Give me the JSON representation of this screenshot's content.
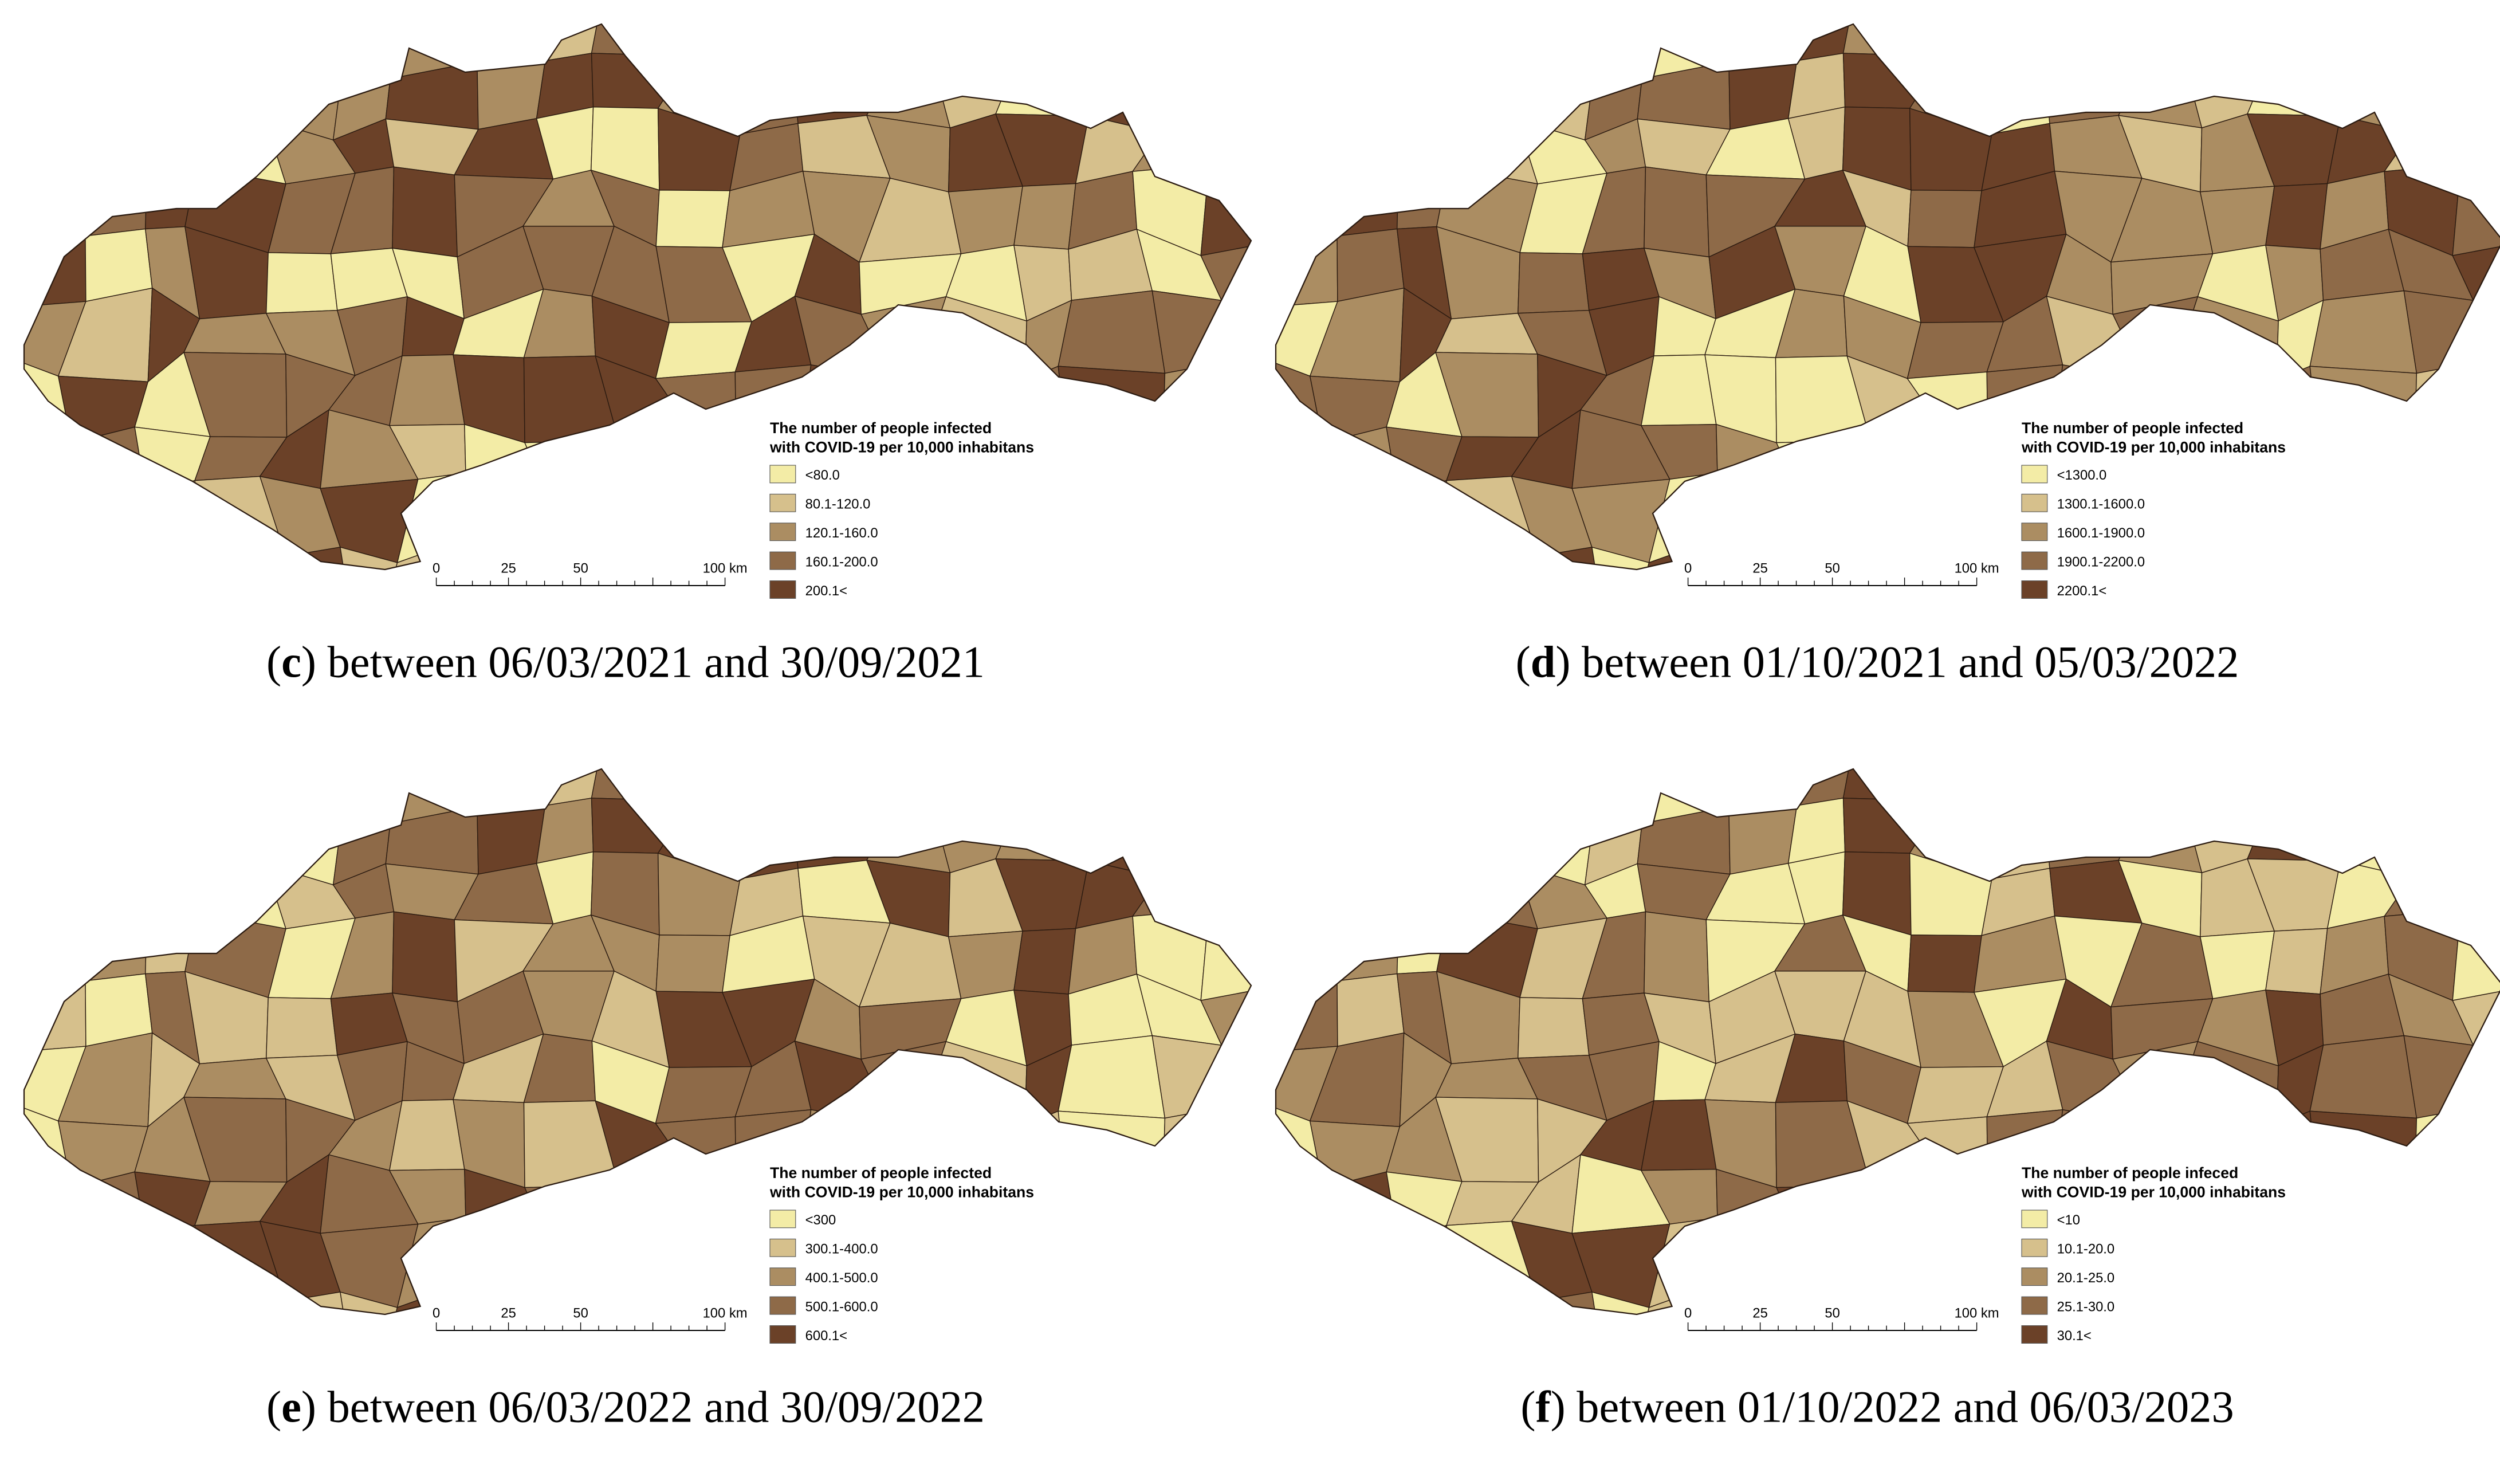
{
  "panels": [
    {
      "caption": [
        "(",
        "c",
        ") between 06/03/2021 and 30/09/2021"
      ],
      "legend_title": [
        "The number of people infected",
        " with COVID-19 per 10,000 inhabitans"
      ],
      "classes": [
        {
          "label": "<80.0",
          "color": "#f3eca6"
        },
        {
          "label": "80.1-120.0",
          "color": "#d6c08c"
        },
        {
          "label": "120.1-160.0",
          "color": "#ab8d62"
        },
        {
          "label": "160.1-200.0",
          "color": "#8e6a48"
        },
        {
          "label": "200.1<",
          "color": "#6b4128"
        }
      ],
      "scale": [
        "0",
        "25",
        "50",
        "100 km"
      ]
    },
    {
      "caption": [
        "(",
        "d",
        ") between 01/10/2021 and 05/03/2022"
      ],
      "legend_title": [
        "The number of people infected",
        "with COVID-19 per 10,000 inhabitans"
      ],
      "classes": [
        {
          "label": "<1300.0",
          "color": "#f3eca6"
        },
        {
          "label": "1300.1-1600.0",
          "color": "#d6c08c"
        },
        {
          "label": "1600.1-1900.0",
          "color": "#ab8d62"
        },
        {
          "label": "1900.1-2200.0",
          "color": "#8e6a48"
        },
        {
          "label": "2200.1<",
          "color": "#6b4128"
        }
      ],
      "scale": [
        "0",
        "25",
        "50",
        "100 km"
      ]
    },
    {
      "caption": [
        "(",
        "e",
        ") between 06/03/2022 and 30/09/2022"
      ],
      "legend_title": [
        "The number of people infected",
        "with COVID-19 per 10,000 inhabitans"
      ],
      "classes": [
        {
          "label": "<300",
          "color": "#f3eca6"
        },
        {
          "label": "300.1-400.0",
          "color": "#d6c08c"
        },
        {
          "label": "400.1-500.0",
          "color": "#ab8d62"
        },
        {
          "label": "500.1-600.0",
          "color": "#8e6a48"
        },
        {
          "label": "600.1<",
          "color": "#6b4128"
        }
      ],
      "scale": [
        "0",
        "25",
        "50",
        "100 km"
      ]
    },
    {
      "caption": [
        "(",
        "f",
        ") between 01/10/2022 and 06/03/2023"
      ],
      "legend_title": [
        "The number of people infeced",
        "with COVID-19 per 10,000 inhabitans"
      ],
      "classes": [
        {
          "label": "<10",
          "color": "#f3eca6"
        },
        {
          "label": "10.1-20.0",
          "color": "#d6c08c"
        },
        {
          "label": "20.1-25.0",
          "color": "#ab8d62"
        },
        {
          "label": "25.1-30.0",
          "color": "#8e6a48"
        },
        {
          "label": "30.1<",
          "color": "#6b4128"
        }
      ],
      "scale": [
        "0",
        "25",
        "50",
        "100 km"
      ]
    }
  ]
}
